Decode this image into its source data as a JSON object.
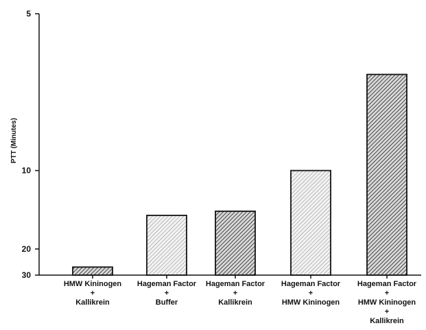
{
  "chart_data": {
    "type": "bar",
    "ylabel": "PTT (Minutes)",
    "y_axis": {
      "scale": "reciprocal",
      "inverted": true,
      "ticks": [
        5,
        10,
        20,
        30
      ],
      "range": [
        5,
        30
      ]
    },
    "categories": [
      [
        "HMW Kininogen",
        "+",
        "Kallikrein"
      ],
      [
        "Hageman Factor",
        "+",
        "Buffer"
      ],
      [
        "Hageman Factor",
        "+",
        "Kallikrein"
      ],
      [
        "Hageman Factor",
        "+",
        "HMW Kininogen"
      ],
      [
        "Hageman Factor",
        "+",
        "HMW Kininogen",
        "+",
        "Kallikrein"
      ]
    ],
    "values": [
      26,
      14,
      13.5,
      10,
      6.2
    ],
    "bar_styles": [
      "dark",
      "light",
      "dark",
      "light",
      "dark"
    ],
    "grid": false,
    "legend": "none"
  }
}
